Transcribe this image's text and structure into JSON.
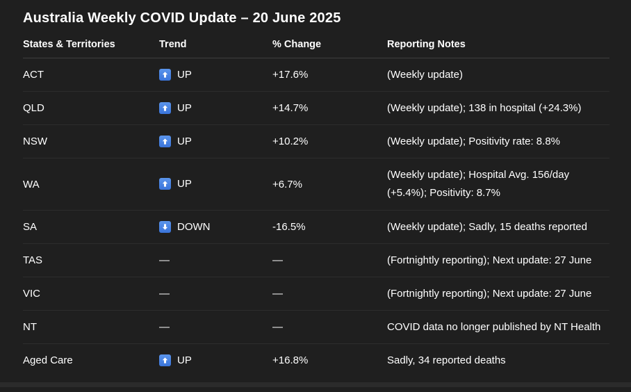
{
  "page": {
    "title": "Australia Weekly COVID Update – 20 June 2025",
    "background_color": "#1f1f1f",
    "text_color": "#ffffff",
    "trend_icon_color": "#3e7de0"
  },
  "table": {
    "columns": [
      "States & Territories",
      "Trend",
      "% Change",
      "Reporting Notes"
    ],
    "rows": [
      {
        "region": "ACT",
        "trend": "UP",
        "trend_dir": "up",
        "change": "+17.6%",
        "notes": "(Weekly update)"
      },
      {
        "region": "QLD",
        "trend": "UP",
        "trend_dir": "up",
        "change": "+14.7%",
        "notes": "(Weekly update); 138 in hospital (+24.3%)"
      },
      {
        "region": "NSW",
        "trend": "UP",
        "trend_dir": "up",
        "change": "+10.2%",
        "notes": "(Weekly update); Positivity rate: 8.8%"
      },
      {
        "region": "WA",
        "trend": "UP",
        "trend_dir": "up",
        "change": "+6.7%",
        "notes": "(Weekly update); Hospital Avg. 156/day (+5.4%); Positivity: 8.7%"
      },
      {
        "region": "SA",
        "trend": "DOWN",
        "trend_dir": "down",
        "change": "-16.5%",
        "notes": "(Weekly update); Sadly, 15 deaths reported"
      },
      {
        "region": "TAS",
        "trend": "—",
        "trend_dir": "none",
        "change": "—",
        "notes": "(Fortnightly reporting); Next update: 27 June"
      },
      {
        "region": "VIC",
        "trend": "—",
        "trend_dir": "none",
        "change": "—",
        "notes": "(Fortnightly reporting); Next update: 27 June"
      },
      {
        "region": "NT",
        "trend": "—",
        "trend_dir": "none",
        "change": "—",
        "notes": "COVID data no longer published by NT Health"
      },
      {
        "region": "Aged Care",
        "trend": "UP",
        "trend_dir": "up",
        "change": "+16.8%",
        "notes": "Sadly, 34 reported deaths"
      }
    ]
  }
}
